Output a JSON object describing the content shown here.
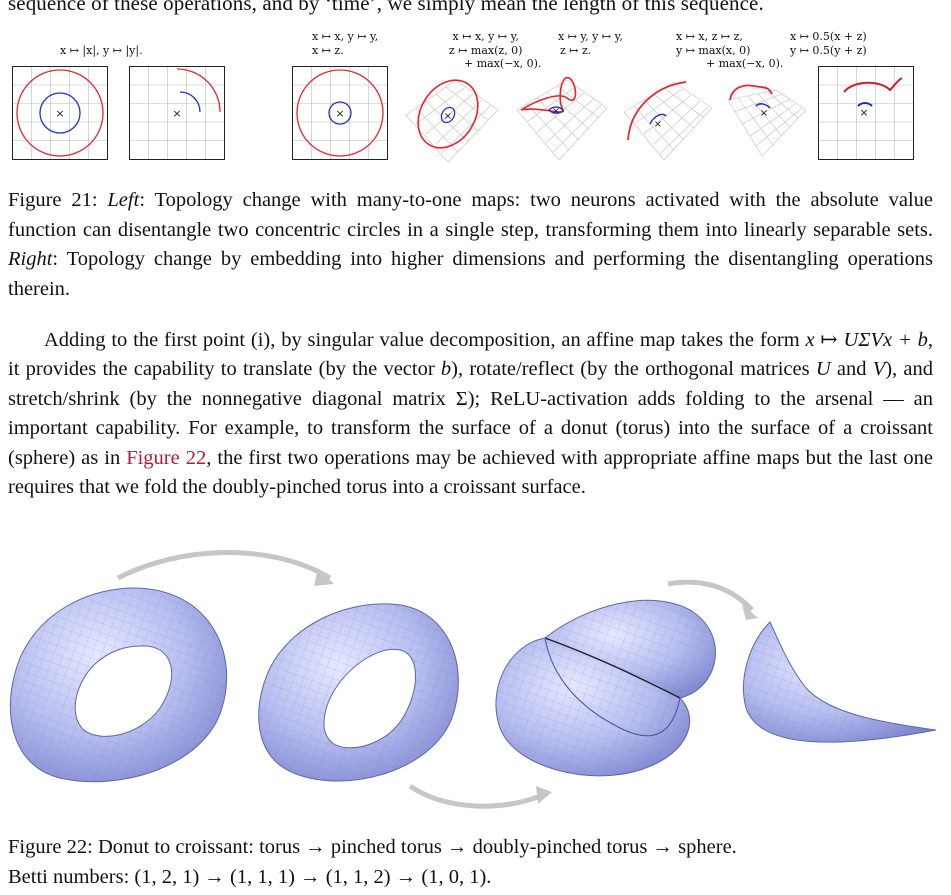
{
  "top_line": "sequence of these operations, and by ‘time’, we simply mean the length of this sequence.",
  "fig21": {
    "left_formula": [
      "x ↦ |x|, y ↦ |y|."
    ],
    "right_formulas": [
      [
        "x ↦ x, y ↦ y,",
        "x ↦ z."
      ],
      [
        "x ↦ x, y ↦ y,",
        "z ↦ max(z, 0)",
        "+ max(−x, 0)."
      ],
      [
        "x ↦ y, y ↦ y,",
        "z ↦ z."
      ],
      [
        "x ↦ x, z ↦ z,",
        "y ↦ max(x, 0)",
        "+ max(−x, 0)."
      ],
      [
        "x ↦ 0.5(x + z)",
        "y ↦ 0.5(y + z)"
      ]
    ],
    "marker": "×",
    "caption_label": "Figure 21:",
    "caption_left_word": "Left",
    "caption_left_text": ": Topology change with many-to-one maps: two neurons activated with the absolute value function can disentangle two concentric circles in a single step, transforming them into linearly separable sets.",
    "caption_right_word": "Right",
    "caption_right_text": ": Topology change by embedding into higher dimensions and performing the disentangling operations therein.",
    "colors": {
      "outer_circle": "#e8252f",
      "inner_circle": "#2233cc",
      "grid": "#b8b8b8"
    }
  },
  "paragraph": {
    "s1": "Adding to the first point (i), by singular value decomposition, an affine map takes the form ",
    "m1": "x ↦ UΣVx + b",
    "s2": ", it provides the capability to translate (by the vector ",
    "m2": "b",
    "s3": "), rotate/reflect (by the orthogonal matrices ",
    "m3": "U",
    "s4": " and ",
    "m4": "V",
    "s5": "), and stretch/shrink (by the nonnegative diagonal matrix Σ); ReLU-activation adds folding to the arsenal — an important capability. For example, to transform the surface of a donut (torus) into the surface of a croissant (sphere) as in ",
    "ref": "Figure 22",
    "s6": ", the first two operations may be achieved with appropriate affine maps but the last one requires that we fold the doubly-pinched torus into a croissant surface."
  },
  "fig22": {
    "caption_line1": "Figure 22: Donut to croissant: torus → pinched torus → doubly-pinched torus → sphere.",
    "caption_line2": "Betti numbers: (1, 2, 1) → (1, 1, 1) → (1, 1, 2) → (1, 0, 1).",
    "colors": {
      "surface": "#b9c0f2",
      "surface_dark": "#6f78c4",
      "arrow": "#c4c4c4"
    }
  }
}
